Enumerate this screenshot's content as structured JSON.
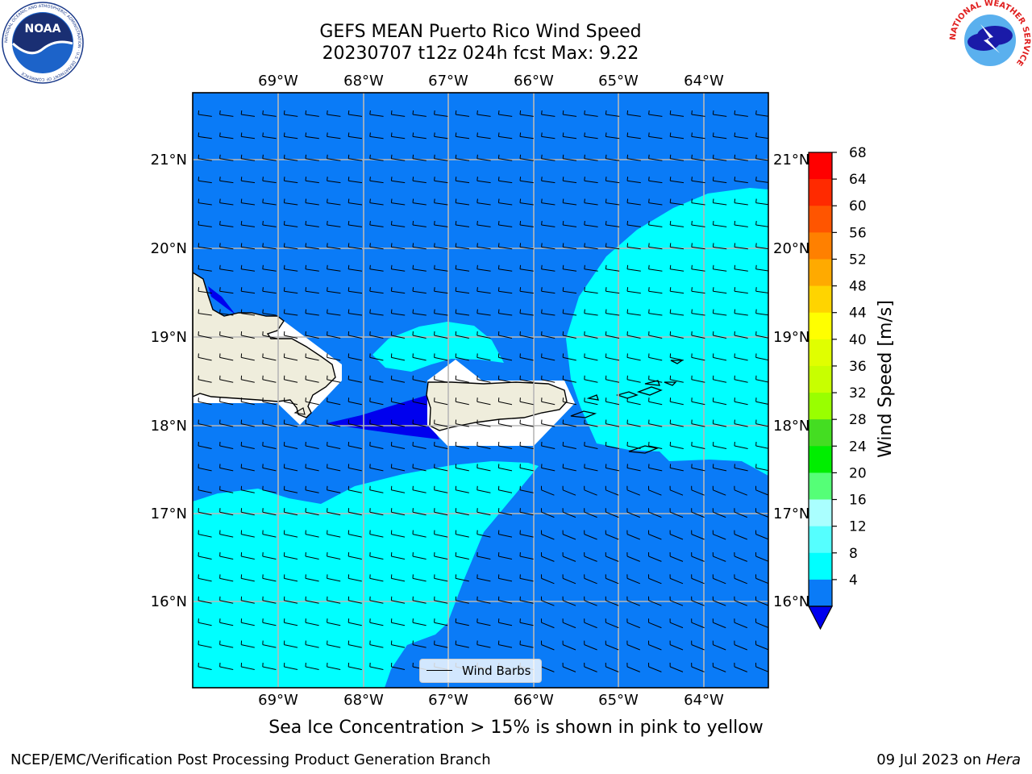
{
  "title": {
    "line1": "GEFS MEAN Puerto Rico Wind Speed",
    "line2": "20230707 t12z 024h fcst   Max: 9.22"
  },
  "map": {
    "lon_labels": [
      "69°W",
      "68°W",
      "67°W",
      "66°W",
      "65°W",
      "64°W"
    ],
    "lat_labels": [
      "21°N",
      "20°N",
      "19°N",
      "18°N",
      "17°N",
      "16°N"
    ],
    "colors": {
      "wind_4_8": "#0a7bf7",
      "wind_8_12": "#00ffff",
      "wind_below_4": "#0000ee",
      "land": "#efeddc",
      "gridline": "#b8b8b8"
    },
    "features": [
      "Hispaniola",
      "Puerto Rico",
      "Virgin Islands"
    ],
    "wind_direction": "easterly"
  },
  "legend": {
    "label": "Wind Barbs",
    "icon": "line-icon"
  },
  "colorbar": {
    "label": "Wind Speed [m/s]",
    "ticks": [
      "68",
      "64",
      "60",
      "56",
      "52",
      "48",
      "44",
      "40",
      "36",
      "32",
      "28",
      "24",
      "20",
      "16",
      "12",
      "8",
      "4"
    ],
    "colors": [
      "#ff0000",
      "#ff2a00",
      "#ff5500",
      "#ff8000",
      "#ffaa00",
      "#ffd400",
      "#ffff00",
      "#e0ff00",
      "#c8ff00",
      "#99ff00",
      "#44dd22",
      "#00ee00",
      "#55ff77",
      "#aaffff",
      "#55ffff",
      "#00ffff",
      "#0a7bf7"
    ],
    "under_color": "#0000ee"
  },
  "bottom_note": "Sea Ice Concentration > 15% is shown in pink to yellow",
  "footer": {
    "left": "NCEP/EMC/Verification Post Processing Product Generation Branch",
    "date": "09 Jul 2023 on",
    "machine": "Hera"
  },
  "logos": {
    "noaa": "NOAA",
    "noaa_ring": "NATIONAL OCEANIC AND ATMOSPHERIC ADMINISTRATION · U.S. DEPARTMENT OF COMMERCE",
    "nws_ring": "NATIONAL WEATHER SERVICE"
  }
}
